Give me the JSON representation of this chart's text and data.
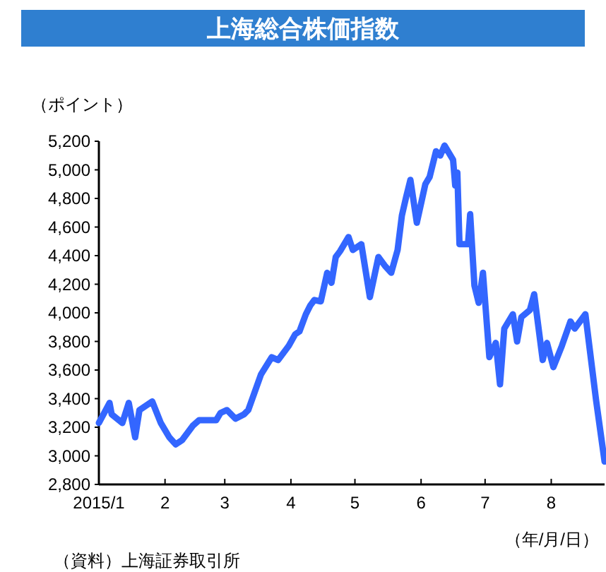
{
  "chart_data": {
    "type": "line",
    "title": "上海総合株価指数",
    "ylabel": "（ポイント）",
    "xlabel": "（年/月/日）",
    "annotations": [
      "（資料）上海証券取引所"
    ],
    "x": [
      "2015-01-01",
      "2015-01-06",
      "2015-01-07",
      "2015-01-12",
      "2015-01-15",
      "2015-01-18",
      "2015-01-20",
      "2015-01-26",
      "2015-01-30",
      "2015-02-03",
      "2015-02-06",
      "2015-02-09",
      "2015-02-14",
      "2015-02-17",
      "2015-02-25",
      "2015-02-27",
      "2015-03-02",
      "2015-03-06",
      "2015-03-10",
      "2015-03-12",
      "2015-03-18",
      "2015-03-23",
      "2015-03-26",
      "2015-03-31",
      "2015-04-03",
      "2015-04-05",
      "2015-04-08",
      "2015-04-10",
      "2015-04-12",
      "2015-04-15",
      "2015-04-18",
      "2015-04-20",
      "2015-04-22",
      "2015-04-24",
      "2015-04-28",
      "2015-04-30",
      "2015-05-04",
      "2015-05-08",
      "2015-05-12",
      "2015-05-15",
      "2015-05-18",
      "2015-05-21",
      "2015-05-23",
      "2015-05-25",
      "2015-05-27",
      "2015-05-30",
      "2015-06-03",
      "2015-06-05",
      "2015-06-08",
      "2015-06-10",
      "2015-06-12",
      "2015-06-16",
      "2015-06-17",
      "2015-06-18",
      "2015-06-19",
      "2015-06-23",
      "2015-06-24",
      "2015-06-26",
      "2015-06-28",
      "2015-06-30",
      "2015-07-03",
      "2015-07-06",
      "2015-07-08",
      "2015-07-10",
      "2015-07-14",
      "2015-07-16",
      "2015-07-18",
      "2015-07-22",
      "2015-07-24",
      "2015-07-28",
      "2015-07-30",
      "2015-08-02",
      "2015-08-06",
      "2015-08-10",
      "2015-08-12",
      "2015-08-17",
      "2015-08-19",
      "2015-08-22",
      "2015-08-26"
    ],
    "series": [
      {
        "color": "#3366ff",
        "values": [
          3230,
          3370,
          3290,
          3230,
          3370,
          3130,
          3320,
          3380,
          3230,
          3130,
          3080,
          3110,
          3210,
          3250,
          3250,
          3300,
          3320,
          3260,
          3290,
          3320,
          3570,
          3690,
          3670,
          3770,
          3850,
          3870,
          3990,
          4050,
          4090,
          4080,
          4280,
          4210,
          4390,
          4430,
          4530,
          4440,
          4480,
          4110,
          4390,
          4330,
          4280,
          4440,
          4680,
          4810,
          4930,
          4630,
          4900,
          4950,
          5130,
          5100,
          5170,
          5070,
          4890,
          4980,
          4480,
          4480,
          4690,
          4190,
          4070,
          4280,
          3690,
          3790,
          3500,
          3890,
          3990,
          3800,
          3970,
          4020,
          4130,
          3670,
          3790,
          3620,
          3770,
          3940,
          3890,
          3990,
          3750,
          3390,
          2960
        ]
      }
    ],
    "xlim": [
      "2015-01-01",
      "2015-08-26"
    ],
    "xticks": [
      {
        "value": "2015-01-01",
        "label": "2015/1"
      },
      {
        "value": "2015-02-01",
        "label": "2"
      },
      {
        "value": "2015-03-01",
        "label": "3"
      },
      {
        "value": "2015-04-01",
        "label": "4"
      },
      {
        "value": "2015-05-01",
        "label": "5"
      },
      {
        "value": "2015-06-01",
        "label": "6"
      },
      {
        "value": "2015-07-01",
        "label": "7"
      },
      {
        "value": "2015-08-01",
        "label": "8"
      }
    ],
    "ylim": [
      2800,
      5200
    ],
    "yticks": [
      {
        "value": 2800,
        "label": "2,800"
      },
      {
        "value": 3000,
        "label": "3,000"
      },
      {
        "value": 3200,
        "label": "3,200"
      },
      {
        "value": 3400,
        "label": "3,400"
      },
      {
        "value": 3600,
        "label": "3,600"
      },
      {
        "value": 3800,
        "label": "3,800"
      },
      {
        "value": 4000,
        "label": "4,000"
      },
      {
        "value": 4200,
        "label": "4,200"
      },
      {
        "value": 4400,
        "label": "4,400"
      },
      {
        "value": 4600,
        "label": "4,600"
      },
      {
        "value": 4800,
        "label": "4,800"
      },
      {
        "value": 5000,
        "label": "5,000"
      },
      {
        "value": 5200,
        "label": "5,200"
      }
    ],
    "line_style": "solid"
  }
}
